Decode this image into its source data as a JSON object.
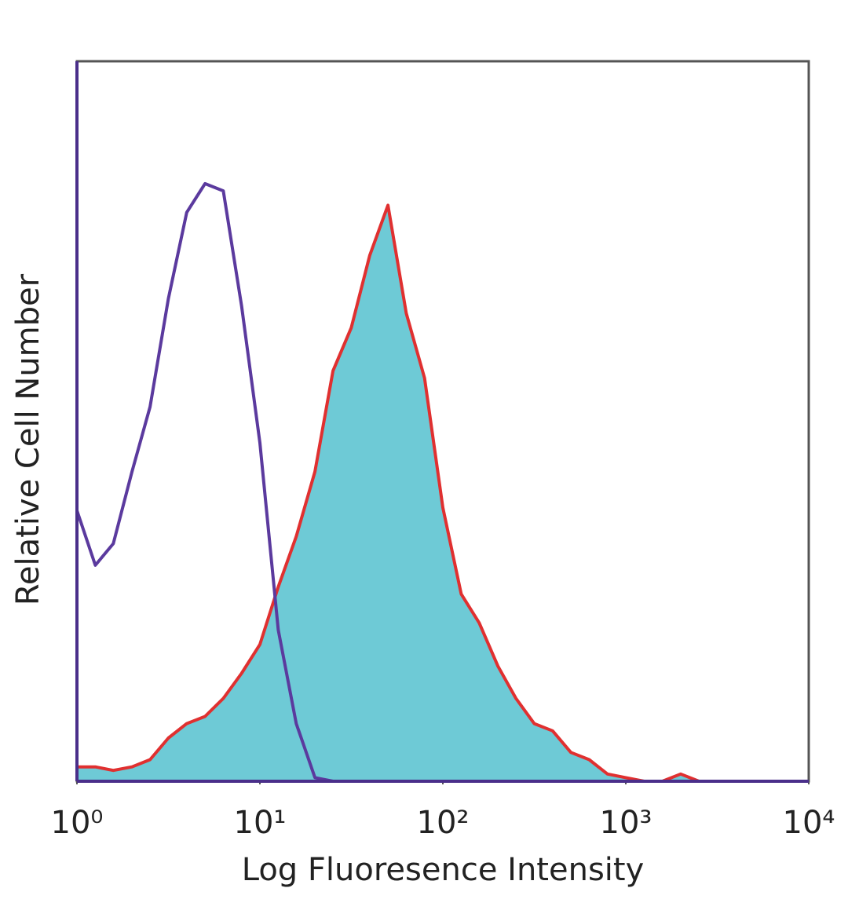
{
  "chart_data": {
    "type": "line",
    "xlabel": "Log Fluoresence Intensity",
    "ylabel": "Relative Cell Number",
    "xscale": "log",
    "xlim": [
      1,
      10000
    ],
    "ylim": [
      0,
      100
    ],
    "xticks": [
      {
        "value": 1,
        "label": "10⁰"
      },
      {
        "value": 10,
        "label": "10¹"
      },
      {
        "value": 100,
        "label": "10²"
      },
      {
        "value": 1000,
        "label": "10³"
      },
      {
        "value": 10000,
        "label": "10⁴"
      }
    ],
    "x": [
      1,
      1.26,
      1.58,
      2,
      2.51,
      3.16,
      3.98,
      5.01,
      6.31,
      7.94,
      10,
      12.6,
      15.8,
      20,
      25.1,
      31.6,
      39.8,
      50.1,
      63.1,
      79.4,
      100,
      126,
      158,
      200,
      251,
      316,
      398,
      501,
      631,
      794,
      1000,
      1259,
      1585,
      1995,
      2512,
      3162,
      3981,
      5012,
      6310,
      7943,
      10000
    ],
    "series": [
      {
        "color": "#5b3a9e",
        "fill": null,
        "values": [
          37.6,
          30,
          33,
          43,
          52,
          67,
          79,
          83,
          82,
          66,
          47,
          21,
          8,
          0.5,
          0,
          0,
          0,
          0,
          0,
          0,
          0,
          0,
          0,
          0,
          0,
          0,
          0,
          0,
          0,
          0,
          0,
          0,
          0,
          0,
          0,
          0,
          0,
          0,
          0,
          0,
          0
        ]
      },
      {
        "color": "#e03030",
        "fill": "#6ecad6",
        "values": [
          2,
          2,
          1.5,
          2,
          3,
          6,
          8,
          9,
          11.5,
          15,
          19,
          27,
          34,
          43,
          57,
          63,
          73,
          80,
          65,
          56,
          38,
          26,
          22,
          16,
          11.5,
          8,
          7,
          4,
          3,
          1,
          0.5,
          0,
          0,
          1,
          0,
          0,
          0,
          0,
          0,
          0,
          0
        ]
      }
    ]
  }
}
